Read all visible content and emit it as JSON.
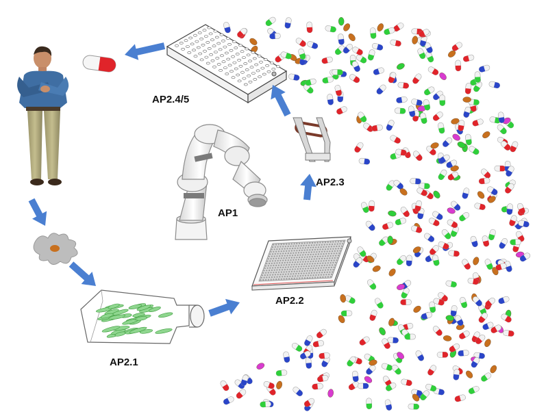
{
  "labels": {
    "ap1": "AP1",
    "ap2_1": "AP2.1",
    "ap2_2": "AP2.2",
    "ap2_3": "AP2.3",
    "ap2_4_5": "AP2.4/5"
  },
  "colors": {
    "arrow": "#4a7fd1",
    "capsule_red": "#e0242a",
    "capsule_blue": "#2a45c8",
    "capsule_green": "#2fcf3a",
    "capsule_magenta": "#d83bd0",
    "capsule_brown": "#c8701e",
    "capsule_white": "#f2f2f2"
  },
  "icons": {
    "person": "human-figure-icon",
    "cell": "cell-icon",
    "flask": "culture-flask-icon",
    "microplate": "microplate-icon",
    "gripper": "gripper-icon",
    "well_plate": "well-plate-icon",
    "robot": "robot-arm-icon",
    "pill": "pill-icon"
  }
}
